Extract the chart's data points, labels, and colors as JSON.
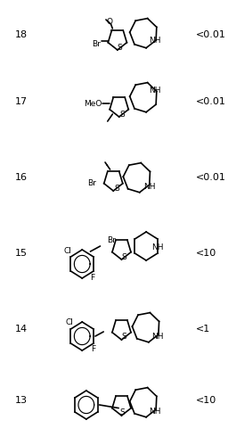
{
  "compounds": [
    {
      "number": "13",
      "value": "<10"
    },
    {
      "number": "14",
      "value": "<1"
    },
    {
      "number": "15",
      "value": "<10"
    },
    {
      "number": "16",
      "value": "<0.01"
    },
    {
      "number": "17",
      "value": "<0.01"
    },
    {
      "number": "18",
      "value": "<0.01"
    }
  ],
  "bg_color": "#ffffff",
  "text_color": "#000000",
  "line_color": "#000000",
  "figsize": [
    2.56,
    4.99
  ],
  "dpi": 100
}
